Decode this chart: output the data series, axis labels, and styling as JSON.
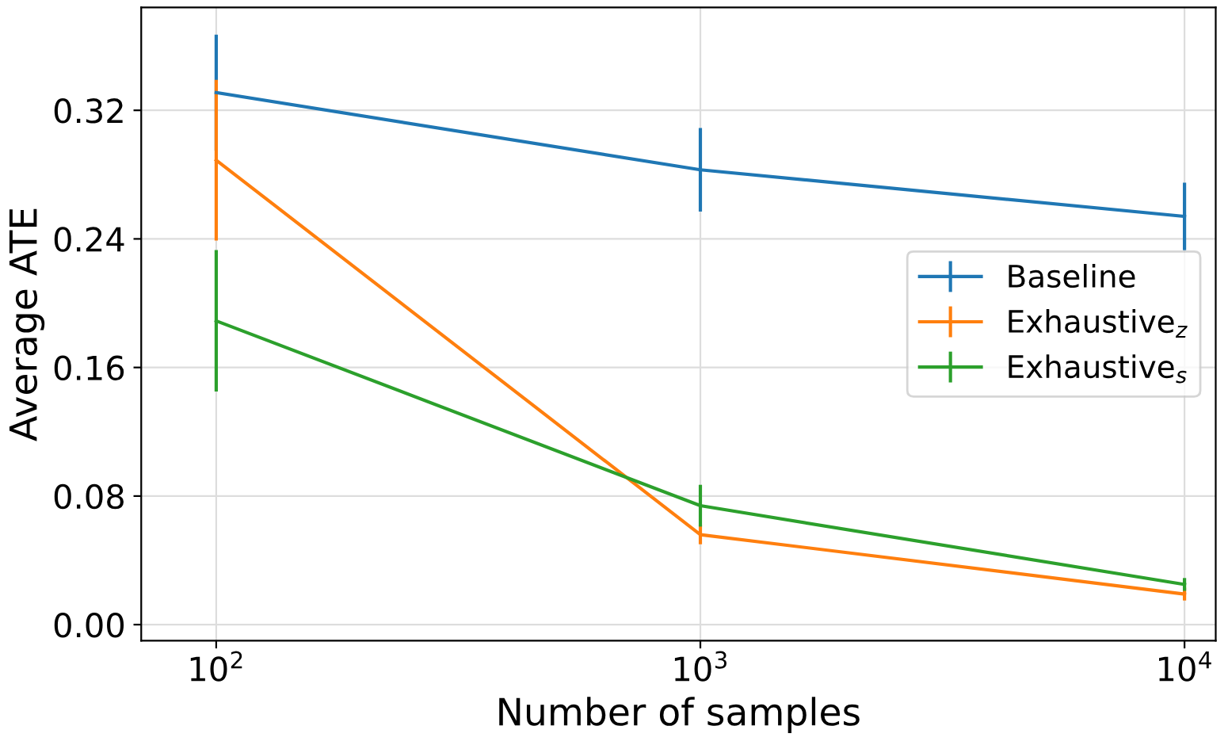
{
  "chart_data": {
    "type": "line",
    "xlabel": "Number of samples",
    "ylabel": "Average ATE",
    "log": "x",
    "x": [
      100,
      1000,
      10000
    ],
    "xlim": [
      70,
      11600
    ],
    "xticks": [
      {
        "value": 100,
        "label": "10$^{2}$"
      },
      {
        "value": 1000,
        "label": "10$^{3}$"
      },
      {
        "value": 10000,
        "label": "10$^{4}$"
      }
    ],
    "ylim": [
      -0.01,
      0.384
    ],
    "yticks": [
      {
        "value": 0,
        "label": "0.00"
      },
      {
        "value": 0.08,
        "label": "0.08"
      },
      {
        "value": 0.16,
        "label": "0.16"
      },
      {
        "value": 0.24,
        "label": "0.24"
      },
      {
        "value": 0.32,
        "label": "0.32"
      }
    ],
    "series": [
      {
        "name": "Baseline",
        "color": "#1f77b4",
        "values": [
          0.331,
          0.283,
          0.254
        ],
        "errors": [
          0.036,
          0.026,
          0.021
        ]
      },
      {
        "name": "Exhaustive$_{z}$",
        "color": "#ff7f0e",
        "values": [
          0.289,
          0.056,
          0.019
        ],
        "errors": [
          0.05,
          0.006,
          0.004
        ]
      },
      {
        "name": "Exhaustive$_{s}$",
        "color": "#2ca02c",
        "values": [
          0.189,
          0.074,
          0.025
        ],
        "errors": [
          0.044,
          0.013,
          0.004
        ]
      }
    ],
    "grid": true,
    "legend": "right",
    "marker": "none",
    "line_style": "solid"
  }
}
